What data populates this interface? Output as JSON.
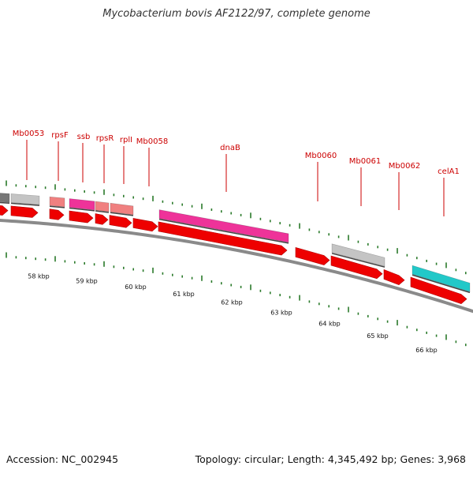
{
  "title": "Mycobacterium bovis AF2122/97, complete genome",
  "footer": {
    "accession": "Accession: NC_002945",
    "summary": "Topology: circular; Length: 4,345,492 bp; Genes: 3,968"
  },
  "colors": {
    "gene_label": "#cc0000",
    "strand_arrow": "#ee0000",
    "tick": "#2a7a2a",
    "backbone": "#8a8a8a",
    "magenta": "#ee3399",
    "salmon": "#f08080",
    "gray": "#c4c4c4",
    "cyan": "#22c8c8"
  },
  "gene_labels": [
    "Mb0053",
    "rpsF",
    "ssb",
    "rpsR",
    "rplI",
    "Mb0058",
    "dnaB",
    "Mb0060",
    "Mb0061",
    "Mb0062",
    "celA1"
  ],
  "kbp_labels": [
    "58 kbp",
    "59 kbp",
    "60 kbp",
    "61 kbp",
    "62 kbp",
    "63 kbp",
    "64 kbp",
    "65 kbp",
    "66 kbp"
  ]
}
